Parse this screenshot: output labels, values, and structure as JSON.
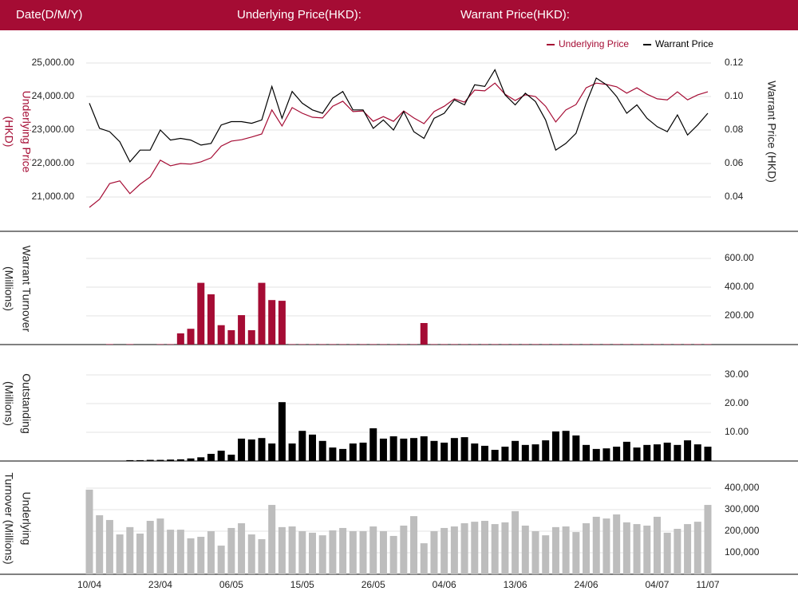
{
  "header": {
    "date": "Date(D/M/Y)",
    "underlying": "Underlying Price(HKD):",
    "warrant": "Warrant Price(HKD):"
  },
  "chart_data": [
    {
      "type": "line",
      "ylabel": [
        "Underlying Price",
        "(HKD)"
      ],
      "y2label": [
        "Warrant  Price (HKD)"
      ],
      "legend": "top-right",
      "ylim": [
        20200,
        25700
      ],
      "yticks": [
        {
          "value": 21000,
          "label": "21,000.00"
        },
        {
          "value": 22000,
          "label": "22,000.00"
        },
        {
          "value": 23000,
          "label": "23,000.00"
        },
        {
          "value": 24000,
          "label": "24,000.00"
        },
        {
          "value": 25000,
          "label": "25,000.00"
        }
      ],
      "y2lim": [
        0.024,
        0.134
      ],
      "y2ticks": [
        0.04,
        0.06,
        0.08,
        {
          "value": 0.1,
          "label": "0.10"
        },
        0.12
      ],
      "grid": true,
      "series": [
        {
          "name": "Underlying Price",
          "color": "#a50c34",
          "values": [
            20690,
            20930,
            21400,
            21480,
            21100,
            21380,
            21600,
            22100,
            21930,
            22000,
            21980,
            22050,
            22170,
            22520,
            22670,
            22710,
            22790,
            22880,
            23600,
            23120,
            23670,
            23500,
            23380,
            23360,
            23710,
            23860,
            23550,
            23570,
            23260,
            23400,
            23260,
            23570,
            23360,
            23190,
            23550,
            23710,
            23930,
            23830,
            24190,
            24170,
            24400,
            24070,
            23880,
            24050,
            24000,
            23710,
            23240,
            23600,
            23760,
            24260,
            24400,
            24360,
            24290,
            24100,
            24260,
            24070,
            23930,
            23900,
            24140,
            23900,
            24050,
            24140
          ]
        },
        {
          "name": "Warrant Price",
          "color": "#000000",
          "axis": "y2",
          "values": [
            0.096,
            0.081,
            0.079,
            0.073,
            0.061,
            0.068,
            0.068,
            0.08,
            0.074,
            0.075,
            0.074,
            0.071,
            0.072,
            0.083,
            0.085,
            0.085,
            0.084,
            0.086,
            0.106,
            0.087,
            0.103,
            0.096,
            0.092,
            0.09,
            0.099,
            0.103,
            0.092,
            0.092,
            0.081,
            0.086,
            0.08,
            0.091,
            0.079,
            0.075,
            0.087,
            0.09,
            0.098,
            0.095,
            0.107,
            0.106,
            0.116,
            0.101,
            0.095,
            0.102,
            0.097,
            0.086,
            0.068,
            0.072,
            0.078,
            0.096,
            0.111,
            0.107,
            0.1,
            0.09,
            0.095,
            0.087,
            0.082,
            0.079,
            0.089,
            0.077,
            0.083,
            0.09
          ]
        }
      ]
    },
    {
      "type": "bar",
      "ylabel": [
        "Warrant  Turnover",
        "(Millions)"
      ],
      "color": "#a50c34",
      "grid": true,
      "ylim": [
        0,
        650
      ],
      "yticks": [
        {
          "value": 200,
          "label": "200.00"
        },
        {
          "value": 400,
          "label": "400.00"
        },
        {
          "value": 600,
          "label": "600.00"
        }
      ],
      "values": [
        0,
        0,
        3,
        0,
        3,
        0,
        0,
        3,
        3,
        78,
        110,
        430,
        350,
        135,
        100,
        205,
        100,
        430,
        310,
        305,
        3,
        3,
        3,
        3,
        3,
        3,
        3,
        3,
        3,
        3,
        3,
        3,
        3,
        150,
        3,
        3,
        3,
        3,
        3,
        3,
        3,
        3,
        3,
        3,
        3,
        3,
        3,
        3,
        3,
        3,
        3,
        3,
        3,
        3,
        3,
        3,
        3,
        3,
        3,
        3,
        3,
        3
      ]
    },
    {
      "type": "bar",
      "ylabel": [
        "Outstanding",
        "(Millions)"
      ],
      "color": "#000000",
      "grid": true,
      "ylim": [
        0,
        38
      ],
      "yticks": [
        {
          "value": 10,
          "label": "10.00"
        },
        {
          "value": 20,
          "label": "20.00"
        },
        {
          "value": 30,
          "label": "30.00"
        }
      ],
      "values": [
        0,
        0,
        0,
        0,
        0.3,
        0.3,
        0.4,
        0.4,
        0.5,
        0.6,
        0.9,
        1.3,
        2.5,
        3.6,
        2.2,
        7.8,
        7.5,
        8,
        6.1,
        20.5,
        6.1,
        10.5,
        9.2,
        7,
        4.7,
        4.2,
        6.1,
        6.4,
        11.4,
        7.8,
        8.6,
        7.8,
        8,
        8.6,
        7,
        6.4,
        8,
        8.3,
        6.1,
        5.3,
        3.9,
        5,
        7,
        5.6,
        5.8,
        7.2,
        10.3,
        10.5,
        8.9,
        5.6,
        4.2,
        4.4,
        5,
        6.7,
        4.7,
        5.6,
        5.8,
        6.4,
        5.6,
        7.2,
        5.8,
        5
      ]
    },
    {
      "type": "bar",
      "ylabel": [
        "Underlying",
        "Turnover (Millions)"
      ],
      "color": "#bdbdbd",
      "grid": true,
      "ylim": [
        0,
        430000
      ],
      "yticks": [
        {
          "value": 100000,
          "label": "100,000"
        },
        {
          "value": 200000,
          "label": "200,000"
        },
        {
          "value": 300000,
          "label": "300,000"
        },
        {
          "value": 400000,
          "label": "400,000"
        }
      ],
      "categories": [
        "10/04",
        null,
        null,
        null,
        null,
        null,
        null,
        "23/04",
        null,
        null,
        null,
        null,
        null,
        null,
        "06/05",
        null,
        null,
        null,
        null,
        null,
        null,
        "15/05",
        null,
        null,
        null,
        null,
        null,
        null,
        "26/05",
        null,
        null,
        null,
        null,
        null,
        null,
        "04/06",
        null,
        null,
        null,
        null,
        null,
        null,
        "13/06",
        null,
        null,
        null,
        null,
        null,
        null,
        "24/06",
        null,
        null,
        null,
        null,
        null,
        null,
        "04/07",
        null,
        null,
        null,
        null,
        "11/07"
      ],
      "values": [
        393000,
        274000,
        252000,
        185000,
        219000,
        189000,
        248000,
        259000,
        207000,
        207000,
        167000,
        174000,
        200000,
        133000,
        215000,
        237000,
        185000,
        163000,
        322000,
        219000,
        222000,
        200000,
        193000,
        181000,
        204000,
        215000,
        200000,
        200000,
        222000,
        200000,
        178000,
        226000,
        270000,
        144000,
        200000,
        215000,
        222000,
        237000,
        244000,
        248000,
        233000,
        241000,
        293000,
        226000,
        200000,
        181000,
        219000,
        222000,
        196000,
        237000,
        267000,
        259000,
        278000,
        241000,
        233000,
        226000,
        267000,
        193000,
        211000,
        233000,
        244000,
        322000
      ]
    }
  ]
}
